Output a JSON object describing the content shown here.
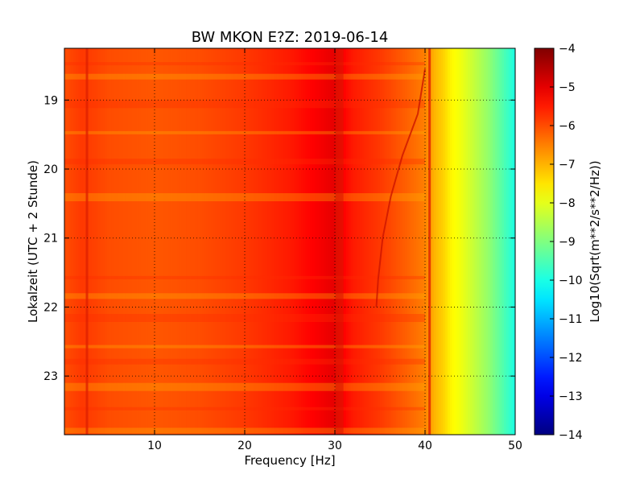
{
  "chart_data": {
    "type": "heatmap",
    "title": "BW MKON E?Z: 2019-06-14",
    "xlabel": "Frequency [Hz]",
    "ylabel": "Lokalzeit (UTC + 2 Stunde)",
    "xlim": [
      0,
      50
    ],
    "ylim": [
      18.25,
      23.85
    ],
    "y_inverted": true,
    "grid": true,
    "xticks": [
      10,
      20,
      30,
      40,
      50
    ],
    "yticks": [
      19,
      20,
      21,
      22,
      23
    ],
    "colormap": "jet",
    "colorbar": {
      "label": "Log10(Sqrt(m**2/s**2/Hz))",
      "range": [
        -14,
        -4
      ],
      "ticks": [
        -4,
        -5,
        -6,
        -7,
        -8,
        -9,
        -10,
        -11,
        -12,
        -13,
        -14
      ]
    },
    "frequency_profile": {
      "frequency": [
        0,
        2,
        5,
        10,
        15,
        20,
        25,
        28,
        30,
        32,
        35,
        38,
        40,
        41,
        42,
        43,
        44,
        45,
        46,
        47,
        48,
        49,
        50
      ],
      "log10_amplitude": [
        -6.0,
        -5.8,
        -6.0,
        -6.1,
        -6.0,
        -5.8,
        -5.5,
        -5.2,
        -5.0,
        -5.5,
        -5.8,
        -6.2,
        -6.5,
        -7.0,
        -7.3,
        -7.7,
        -7.9,
        -8.2,
        -8.5,
        -8.8,
        -9.2,
        -9.6,
        -10.0
      ]
    },
    "features": [
      {
        "frequency": 2.5,
        "kind": "vertical line"
      },
      {
        "frequency": 30.5,
        "kind": "vertical band"
      },
      {
        "frequency": 40.5,
        "kind": "vertical line"
      }
    ]
  }
}
